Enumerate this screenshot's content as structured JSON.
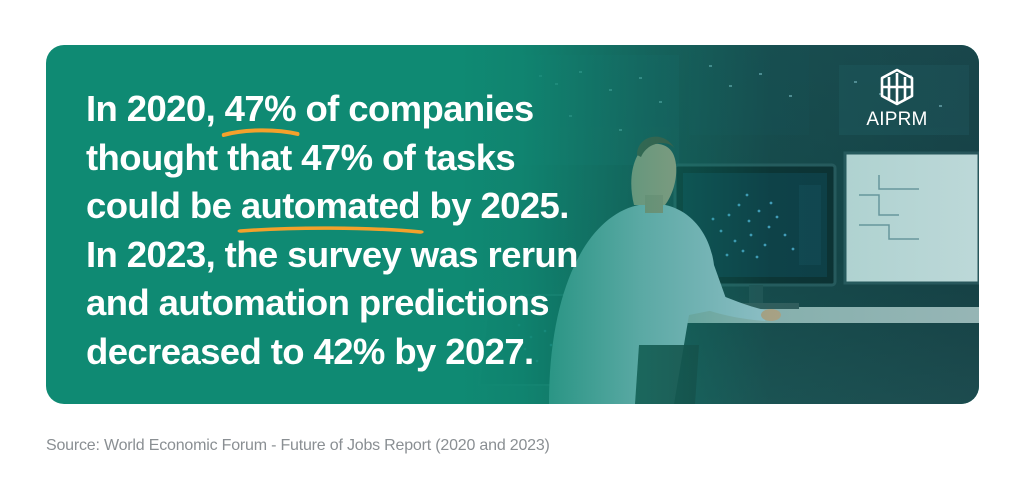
{
  "card": {
    "background_color": "#0f8a73",
    "accent_color": "#f4a12b",
    "headline": {
      "line1_prefix": "In 2020, ",
      "line1_highlight": "47%",
      "line1_suffix": " of companies",
      "line2": "thought that 47% of tasks",
      "line3_prefix": "could be ",
      "line3_highlight": "automated",
      "line3_suffix": " by 2025.",
      "line4": "In 2023, the survey was rerun",
      "line5": "and automation predictions",
      "line6": "decreased to 42% by 2027."
    },
    "logo": {
      "icon": "aiprm-logo-icon",
      "text": "AIPRM"
    },
    "photo": {
      "icon": "person-at-computer-image"
    }
  },
  "source": "Source: World Economic Forum - Future of Jobs Report (2020 and 2023)"
}
